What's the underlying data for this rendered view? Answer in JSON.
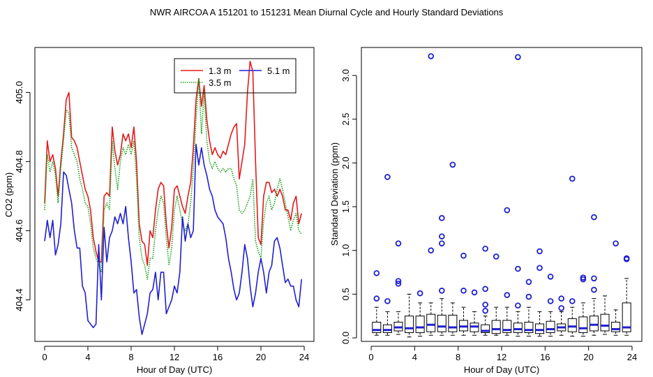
{
  "title": "NWR   AIRCOA A   151201 to 151231   Mean Diurnal Cycle and Hourly Standard Deviations",
  "chart_data": [
    {
      "type": "line",
      "title": "",
      "xlabel": "Hour of Day (UTC)",
      "ylabel": "CO2 (ppm)",
      "xlim": [
        -0.9,
        24.9
      ],
      "ylim": [
        404.28,
        405.13
      ],
      "xticks": [
        0,
        4,
        8,
        12,
        16,
        20,
        24
      ],
      "xtick_labels": [
        "0",
        "4",
        "8",
        "12",
        "16",
        "20",
        "24"
      ],
      "yticks": [
        404.4,
        404.6,
        404.8,
        405.0
      ],
      "ytick_labels": [
        "404.4",
        "404.6",
        "404.8",
        "405.0"
      ],
      "legend_position": "top-right",
      "series": [
        {
          "name": "1.3 m",
          "color": "#e31a1c",
          "style": "solid",
          "x": [
            0,
            0.25,
            0.5,
            0.75,
            1,
            1.25,
            1.5,
            1.75,
            2,
            2.25,
            2.5,
            2.75,
            3,
            3.25,
            3.5,
            3.75,
            4,
            4.25,
            4.5,
            4.75,
            5,
            5.25,
            5.5,
            5.75,
            6,
            6.25,
            6.5,
            6.75,
            7,
            7.25,
            7.5,
            7.75,
            8,
            8.25,
            8.5,
            8.75,
            9,
            9.25,
            9.5,
            9.75,
            10,
            10.25,
            10.5,
            10.75,
            11,
            11.25,
            11.5,
            11.75,
            12,
            12.25,
            12.5,
            12.75,
            13,
            13.25,
            13.5,
            13.75,
            14,
            14.25,
            14.5,
            14.75,
            15,
            15.25,
            15.5,
            15.75,
            16,
            16.25,
            16.5,
            16.75,
            17,
            17.25,
            17.5,
            17.75,
            18,
            18.25,
            18.5,
            18.75,
            19,
            19.25,
            19.5,
            19.75,
            20,
            20.25,
            20.5,
            20.75,
            21,
            21.25,
            21.5,
            21.75,
            22,
            22.25,
            22.5,
            22.75,
            23,
            23.25,
            23.5,
            23.75
          ],
          "y": [
            404.68,
            404.86,
            404.8,
            404.82,
            404.78,
            404.7,
            404.8,
            404.88,
            404.98,
            405.0,
            404.87,
            404.86,
            404.84,
            404.8,
            404.76,
            404.72,
            404.7,
            404.66,
            404.58,
            404.54,
            404.51,
            404.51,
            404.7,
            404.71,
            404.7,
            404.9,
            404.83,
            404.79,
            404.82,
            404.88,
            404.86,
            404.88,
            404.84,
            404.9,
            404.8,
            404.62,
            404.57,
            404.56,
            404.5,
            404.6,
            404.58,
            404.66,
            404.72,
            404.74,
            404.73,
            404.62,
            404.55,
            404.61,
            404.72,
            404.73,
            404.7,
            404.67,
            404.65,
            404.7,
            404.74,
            404.84,
            404.98,
            405.04,
            404.96,
            405.02,
            404.92,
            404.86,
            404.82,
            404.84,
            404.82,
            404.81,
            404.83,
            404.82,
            404.85,
            404.88,
            404.9,
            404.91,
            404.75,
            404.8,
            404.85,
            405.0,
            405.09,
            405.06,
            404.8,
            404.58,
            404.56,
            404.7,
            404.74,
            404.74,
            404.71,
            404.72,
            404.7,
            404.72,
            404.7,
            404.66,
            404.66,
            404.63,
            404.68,
            404.7,
            404.62,
            404.65
          ]
        },
        {
          "name": "3.5 m",
          "color": "#1aa31a",
          "style": "dotted",
          "x": [
            0,
            0.25,
            0.5,
            0.75,
            1,
            1.25,
            1.5,
            1.75,
            2,
            2.25,
            2.5,
            2.75,
            3,
            3.25,
            3.5,
            3.75,
            4,
            4.25,
            4.5,
            4.75,
            5,
            5.25,
            5.5,
            5.75,
            6,
            6.25,
            6.5,
            6.75,
            7,
            7.25,
            7.5,
            7.75,
            8,
            8.25,
            8.5,
            8.75,
            9,
            9.25,
            9.5,
            9.75,
            10,
            10.25,
            10.5,
            10.75,
            11,
            11.25,
            11.5,
            11.75,
            12,
            12.25,
            12.5,
            12.75,
            13,
            13.25,
            13.5,
            13.75,
            14,
            14.25,
            14.5,
            14.75,
            15,
            15.25,
            15.5,
            15.75,
            16,
            16.25,
            16.5,
            16.75,
            17,
            17.25,
            17.5,
            17.75,
            18,
            18.25,
            18.5,
            18.75,
            19,
            19.25,
            19.5,
            19.75,
            20,
            20.25,
            20.5,
            20.75,
            21,
            21.25,
            21.5,
            21.75,
            22,
            22.25,
            22.5,
            22.75,
            23,
            23.25,
            23.5,
            23.75
          ],
          "y": [
            404.66,
            404.82,
            404.77,
            404.8,
            404.76,
            404.68,
            404.78,
            404.86,
            404.95,
            404.94,
            404.84,
            404.82,
            404.8,
            404.75,
            404.72,
            404.68,
            404.67,
            404.62,
            404.55,
            404.52,
            404.5,
            404.48,
            404.66,
            404.68,
            404.66,
            404.86,
            404.78,
            404.72,
            404.8,
            404.84,
            404.82,
            404.85,
            404.82,
            404.86,
            404.75,
            404.58,
            404.52,
            404.5,
            404.46,
            404.52,
            404.52,
            404.6,
            404.66,
            404.7,
            404.68,
            404.58,
            404.5,
            404.55,
            404.66,
            404.7,
            404.66,
            404.62,
            404.6,
            404.62,
            404.68,
            404.78,
            404.92,
            405.04,
            404.88,
            405.0,
            404.86,
            404.8,
            404.78,
            404.8,
            404.78,
            404.77,
            404.78,
            404.77,
            404.78,
            404.78,
            404.75,
            404.73,
            404.66,
            404.65,
            404.66,
            404.68,
            404.7,
            404.75,
            404.57,
            404.54,
            404.52,
            404.63,
            404.68,
            404.7,
            404.66,
            404.68,
            404.72,
            404.75,
            404.72,
            404.68,
            404.64,
            404.6,
            404.63,
            404.65,
            404.6,
            404.59
          ]
        },
        {
          "name": "5.1 m",
          "color": "#1f1fd1",
          "style": "solid",
          "x": [
            0,
            0.25,
            0.5,
            0.75,
            1,
            1.25,
            1.5,
            1.75,
            2,
            2.25,
            2.5,
            2.75,
            3,
            3.25,
            3.5,
            3.75,
            4,
            4.25,
            4.5,
            4.75,
            5,
            5.25,
            5.5,
            5.75,
            6,
            6.25,
            6.5,
            6.75,
            7,
            7.25,
            7.5,
            7.75,
            8,
            8.25,
            8.5,
            8.75,
            9,
            9.25,
            9.5,
            9.75,
            10,
            10.25,
            10.5,
            10.75,
            11,
            11.25,
            11.5,
            11.75,
            12,
            12.25,
            12.5,
            12.75,
            13,
            13.25,
            13.5,
            13.75,
            14,
            14.25,
            14.5,
            14.75,
            15,
            15.25,
            15.5,
            15.75,
            16,
            16.25,
            16.5,
            16.75,
            17,
            17.25,
            17.5,
            17.75,
            18,
            18.25,
            18.5,
            18.75,
            19,
            19.25,
            19.5,
            19.75,
            20,
            20.25,
            20.5,
            20.75,
            21,
            21.25,
            21.5,
            21.75,
            22,
            22.25,
            22.5,
            22.75,
            23,
            23.25,
            23.5,
            23.75
          ],
          "y": [
            404.57,
            404.63,
            404.58,
            404.63,
            404.53,
            404.56,
            404.62,
            404.77,
            404.76,
            404.72,
            404.68,
            404.6,
            404.55,
            404.55,
            404.44,
            404.42,
            404.34,
            404.33,
            404.32,
            404.33,
            404.56,
            404.4,
            404.61,
            404.51,
            404.58,
            404.6,
            404.64,
            404.62,
            404.65,
            404.62,
            404.67,
            404.58,
            404.51,
            404.42,
            404.43,
            404.35,
            404.3,
            404.33,
            404.36,
            404.42,
            404.43,
            404.48,
            404.4,
            404.48,
            404.48,
            404.36,
            404.38,
            404.4,
            404.44,
            404.42,
            404.48,
            404.64,
            404.57,
            404.62,
            404.58,
            404.6,
            404.85,
            404.79,
            404.84,
            404.79,
            404.76,
            404.72,
            404.7,
            404.66,
            404.64,
            404.63,
            404.62,
            404.58,
            404.52,
            404.48,
            404.43,
            404.4,
            404.42,
            404.48,
            404.56,
            404.52,
            404.44,
            404.38,
            404.42,
            404.48,
            404.52,
            404.48,
            404.42,
            404.48,
            404.5,
            404.57,
            404.58,
            404.55,
            404.5,
            404.45,
            404.46,
            404.44,
            404.44,
            404.4,
            404.38,
            404.46
          ]
        }
      ]
    },
    {
      "type": "box",
      "title": "",
      "xlabel": "Hour of Day (UTC)",
      "ylabel": "Standard Deviation (ppm)",
      "xlim": [
        -0.9,
        24.9
      ],
      "ylim": [
        -0.04,
        3.32
      ],
      "xticks": [
        0,
        4,
        8,
        12,
        16,
        20,
        24
      ],
      "xtick_labels": [
        "0",
        "4",
        "8",
        "12",
        "16",
        "20",
        "24"
      ],
      "yticks": [
        0.0,
        0.5,
        1.0,
        1.5,
        2.0,
        2.5,
        3.0
      ],
      "ytick_labels": [
        "0.0",
        "0.5",
        "1.0",
        "1.5",
        "2.0",
        "2.5",
        "3.0"
      ],
      "box_color": "#1f1fd1",
      "boxes": [
        {
          "hour": 0.5,
          "lower_whisker": 0.03,
          "q1": 0.06,
          "median": 0.09,
          "q3": 0.18,
          "upper_whisker": 0.35,
          "outliers": [
            0.45,
            0.74
          ]
        },
        {
          "hour": 1.5,
          "lower_whisker": 0.03,
          "q1": 0.06,
          "median": 0.09,
          "q3": 0.15,
          "upper_whisker": 0.3,
          "outliers": [
            0.42,
            1.84
          ]
        },
        {
          "hour": 2.5,
          "lower_whisker": 0.04,
          "q1": 0.08,
          "median": 0.12,
          "q3": 0.18,
          "upper_whisker": 0.3,
          "outliers": [
            0.62,
            0.65,
            1.08
          ]
        },
        {
          "hour": 3.5,
          "lower_whisker": 0.01,
          "q1": 0.06,
          "median": 0.11,
          "q3": 0.25,
          "upper_whisker": 0.5,
          "outliers": []
        },
        {
          "hour": 4.5,
          "lower_whisker": 0.02,
          "q1": 0.06,
          "median": 0.12,
          "q3": 0.25,
          "upper_whisker": 0.4,
          "outliers": [
            0.51
          ]
        },
        {
          "hour": 5.5,
          "lower_whisker": 0.03,
          "q1": 0.07,
          "median": 0.15,
          "q3": 0.27,
          "upper_whisker": 0.4,
          "outliers": [
            1.0,
            3.22
          ]
        },
        {
          "hour": 6.5,
          "lower_whisker": 0.03,
          "q1": 0.07,
          "median": 0.13,
          "q3": 0.26,
          "upper_whisker": 0.45,
          "outliers": [
            0.54,
            1.08,
            1.16,
            1.37
          ]
        },
        {
          "hour": 7.5,
          "lower_whisker": 0.03,
          "q1": 0.07,
          "median": 0.12,
          "q3": 0.26,
          "upper_whisker": 0.4,
          "outliers": [
            1.98
          ]
        },
        {
          "hour": 8.5,
          "lower_whisker": 0.03,
          "q1": 0.08,
          "median": 0.13,
          "q3": 0.2,
          "upper_whisker": 0.35,
          "outliers": [
            0.54,
            0.94
          ]
        },
        {
          "hour": 9.5,
          "lower_whisker": 0.03,
          "q1": 0.07,
          "median": 0.13,
          "q3": 0.17,
          "upper_whisker": 0.3,
          "outliers": [
            0.52
          ]
        },
        {
          "hour": 10.5,
          "lower_whisker": 0.03,
          "q1": 0.06,
          "median": 0.08,
          "q3": 0.15,
          "upper_whisker": 0.25,
          "outliers": [
            0.31,
            0.38,
            0.56,
            1.02
          ]
        },
        {
          "hour": 11.5,
          "lower_whisker": 0.03,
          "q1": 0.05,
          "median": 0.1,
          "q3": 0.2,
          "upper_whisker": 0.35,
          "outliers": [
            0.93
          ]
        },
        {
          "hour": 12.5,
          "lower_whisker": 0.03,
          "q1": 0.06,
          "median": 0.09,
          "q3": 0.2,
          "upper_whisker": 0.35,
          "outliers": [
            0.49,
            1.46
          ]
        },
        {
          "hour": 13.5,
          "lower_whisker": 0.02,
          "q1": 0.06,
          "median": 0.1,
          "q3": 0.17,
          "upper_whisker": 0.3,
          "outliers": [
            0.37,
            0.79,
            3.21
          ]
        },
        {
          "hour": 14.5,
          "lower_whisker": 0.02,
          "q1": 0.06,
          "median": 0.09,
          "q3": 0.18,
          "upper_whisker": 0.35,
          "outliers": [
            0.47,
            0.64
          ]
        },
        {
          "hour": 15.5,
          "lower_whisker": 0.02,
          "q1": 0.05,
          "median": 0.09,
          "q3": 0.16,
          "upper_whisker": 0.3,
          "outliers": [
            0.8,
            0.99
          ]
        },
        {
          "hour": 16.5,
          "lower_whisker": 0.02,
          "q1": 0.06,
          "median": 0.1,
          "q3": 0.19,
          "upper_whisker": 0.3,
          "outliers": [
            0.42,
            0.7
          ]
        },
        {
          "hour": 17.5,
          "lower_whisker": 0.03,
          "q1": 0.08,
          "median": 0.12,
          "q3": 0.16,
          "upper_whisker": 0.3,
          "outliers": [
            0.34,
            0.45
          ]
        },
        {
          "hour": 18.5,
          "lower_whisker": 0.02,
          "q1": 0.07,
          "median": 0.13,
          "q3": 0.22,
          "upper_whisker": 0.35,
          "outliers": [
            0.42,
            1.82
          ]
        },
        {
          "hour": 19.5,
          "lower_whisker": 0.02,
          "q1": 0.06,
          "median": 0.11,
          "q3": 0.24,
          "upper_whisker": 0.4,
          "outliers": [
            0.67,
            0.69
          ]
        },
        {
          "hour": 20.5,
          "lower_whisker": 0.03,
          "q1": 0.08,
          "median": 0.15,
          "q3": 0.25,
          "upper_whisker": 0.45,
          "outliers": [
            0.55,
            0.68,
            1.38
          ]
        },
        {
          "hour": 21.5,
          "lower_whisker": 0.04,
          "q1": 0.08,
          "median": 0.14,
          "q3": 0.27,
          "upper_whisker": 0.48,
          "outliers": []
        },
        {
          "hour": 22.5,
          "lower_whisker": 0.03,
          "q1": 0.07,
          "median": 0.1,
          "q3": 0.18,
          "upper_whisker": 0.32,
          "outliers": [
            1.08
          ]
        },
        {
          "hour": 23.5,
          "lower_whisker": 0.03,
          "q1": 0.07,
          "median": 0.12,
          "q3": 0.4,
          "upper_whisker": 0.68,
          "outliers": [
            0.9,
            0.91
          ]
        }
      ]
    }
  ]
}
